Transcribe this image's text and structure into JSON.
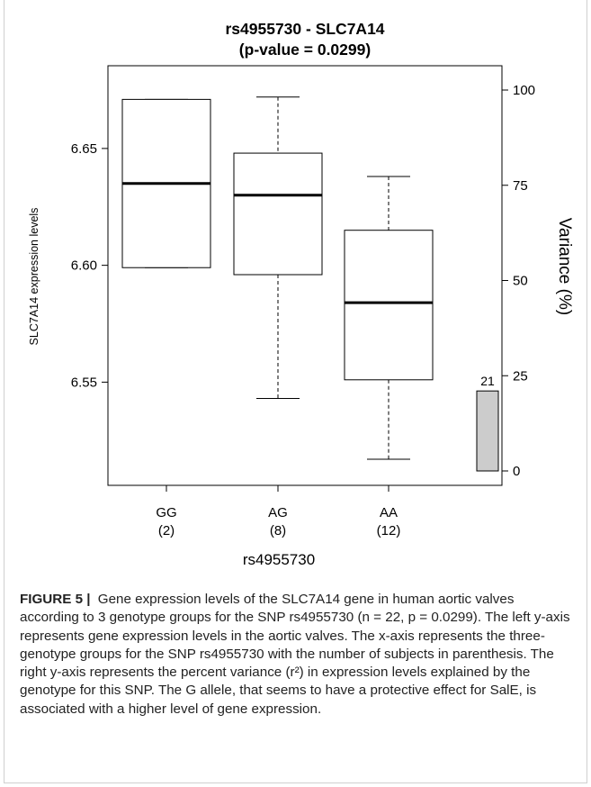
{
  "chart_data": {
    "type": "box",
    "title": "rs4955730 - SLC7A14",
    "subtitle": "(p-value = 0.0299)",
    "xlabel": "rs4955730",
    "ylabel_left": "SLC7A14 expression levels",
    "ylabel_right": "Variance (%)",
    "ylim_left": [
      6.512,
      6.675
    ],
    "left_ticks": [
      "6.55",
      "6.60",
      "6.65"
    ],
    "right_ticks": [
      "0",
      "25",
      "50",
      "75",
      "100"
    ],
    "ylim_right": [
      0,
      100
    ],
    "groups": [
      {
        "category": "GG",
        "count": "(2)",
        "whisker_low": 6.599,
        "q1": 6.599,
        "median": 6.635,
        "q3": 6.671,
        "whisker_high": 6.671
      },
      {
        "category": "AG",
        "count": "(8)",
        "whisker_low": 6.543,
        "q1": 6.596,
        "median": 6.63,
        "q3": 6.648,
        "whisker_high": 6.672
      },
      {
        "category": "AA",
        "count": "(12)",
        "whisker_low": 6.517,
        "q1": 6.551,
        "median": 6.584,
        "q3": 6.615,
        "whisker_high": 6.638
      }
    ],
    "variance_bar": {
      "value": 21,
      "label": "21",
      "color": "#cccccc"
    }
  },
  "caption": {
    "label": "FIGURE 5",
    "separator": "|",
    "text": "Gene expression levels of the SLC7A14 gene in human aortic valves according to 3 genotype groups for the SNP rs4955730 (n = 22, p = 0.0299). The left y-axis represents gene expression levels in the aortic valves. The x-axis represents the three-genotype groups for the SNP rs4955730 with the number of subjects in parenthesis. The right y-axis represents the percent variance (r²) in expression levels explained by the genotype for this SNP. The G allele, that seems to have a protective effect for SalE, is associated with a higher level of gene expression."
  }
}
